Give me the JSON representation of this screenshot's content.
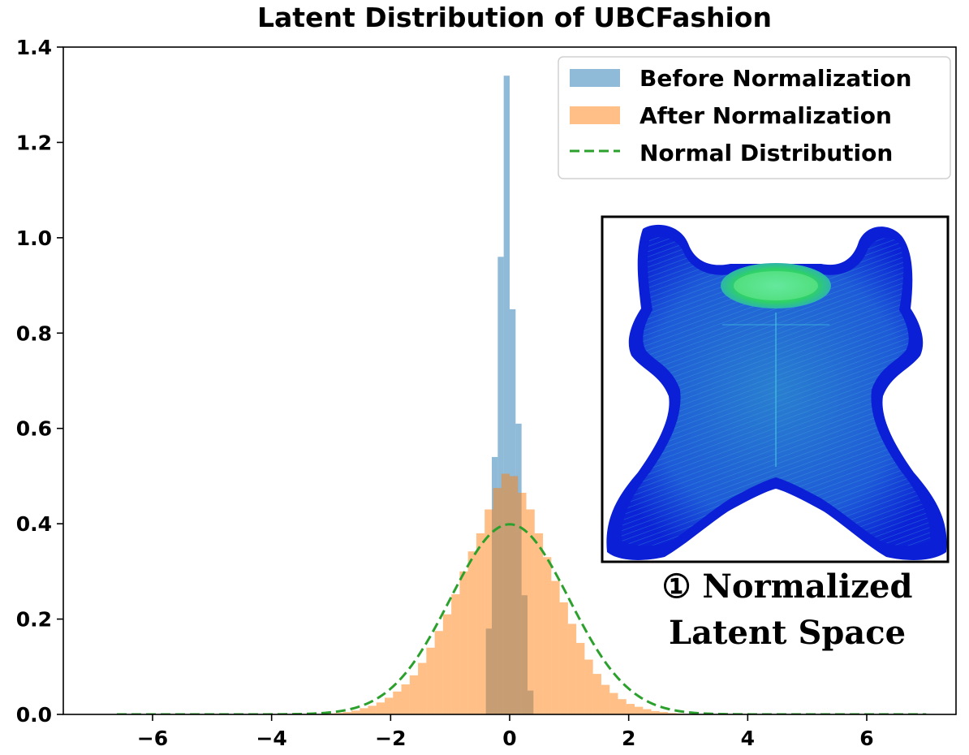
{
  "chart_data": {
    "type": "histogram",
    "title": "Latent Distribution of UBCFashion",
    "xlabel": "",
    "ylabel": "",
    "xlim": [
      -7.5,
      7.5
    ],
    "ylim": [
      0,
      1.4
    ],
    "xticks": [
      -6,
      -4,
      -2,
      0,
      2,
      4,
      6
    ],
    "xtick_labels": [
      "−6",
      "−4",
      "−2",
      "0",
      "2",
      "4",
      "6"
    ],
    "yticks": [
      0.0,
      0.2,
      0.4,
      0.6,
      0.8,
      1.0,
      1.2,
      1.4
    ],
    "ytick_labels": [
      "0.0",
      "0.2",
      "0.4",
      "0.6",
      "0.8",
      "1.0",
      "1.2",
      "1.4"
    ],
    "grid": false,
    "legend_position": "top-right",
    "series": [
      {
        "name": "Before Normalization",
        "kind": "histogram",
        "color": "#1f77b4",
        "opacity": 0.5,
        "bin_width": 0.1,
        "bin_starts": [
          -0.4,
          -0.3,
          -0.2,
          -0.1,
          0.0,
          0.1,
          0.2,
          0.3
        ],
        "values": [
          0.18,
          0.54,
          0.96,
          1.34,
          0.85,
          0.61,
          0.25,
          0.05
        ]
      },
      {
        "name": "After Normalization",
        "kind": "histogram",
        "color": "#ff7f0e",
        "opacity": 0.5,
        "bin_width": 0.14,
        "bin_starts": [
          -3.08,
          -2.94,
          -2.8,
          -2.66,
          -2.52,
          -2.38,
          -2.24,
          -2.1,
          -1.96,
          -1.82,
          -1.68,
          -1.54,
          -1.4,
          -1.26,
          -1.12,
          -0.98,
          -0.84,
          -0.7,
          -0.56,
          -0.42,
          -0.28,
          -0.14,
          0.0,
          0.14,
          0.28,
          0.42,
          0.56,
          0.7,
          0.84,
          0.98,
          1.12,
          1.26,
          1.4,
          1.54,
          1.68,
          1.82,
          1.96,
          2.1,
          2.24,
          2.38,
          2.52,
          2.66,
          2.8,
          2.94
        ],
        "values": [
          0.002,
          0.003,
          0.005,
          0.008,
          0.013,
          0.018,
          0.025,
          0.035,
          0.048,
          0.063,
          0.082,
          0.108,
          0.14,
          0.175,
          0.21,
          0.252,
          0.3,
          0.342,
          0.38,
          0.43,
          0.475,
          0.505,
          0.5,
          0.465,
          0.43,
          0.38,
          0.33,
          0.28,
          0.235,
          0.19,
          0.15,
          0.115,
          0.085,
          0.062,
          0.045,
          0.032,
          0.022,
          0.016,
          0.011,
          0.007,
          0.005,
          0.003,
          0.002,
          0.001
        ]
      },
      {
        "name": "Normal Distribution",
        "kind": "line",
        "color": "#2ca02c",
        "dashed": true,
        "mean": 0,
        "std": 1,
        "x_range": [
          -6.6,
          7.0
        ]
      }
    ],
    "inset": {
      "caption_line1": "① Normalized",
      "caption_line2": "Latent Space"
    }
  }
}
